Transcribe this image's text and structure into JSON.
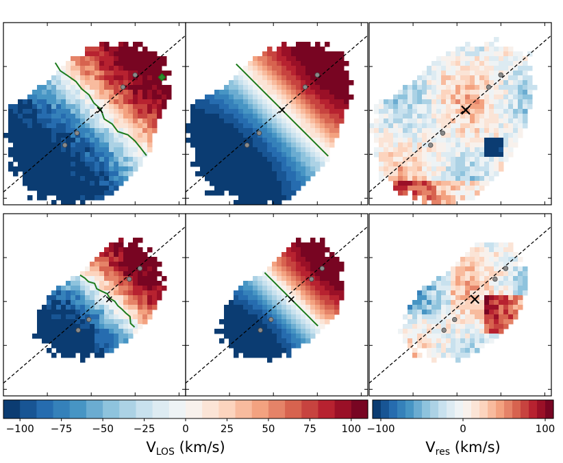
{
  "figure": {
    "description_type": "velocity_maps_grid",
    "rows": 2,
    "columns": 3
  },
  "colormap": {
    "name": "RdBu_r",
    "stops": [
      "#053061",
      "#2166ac",
      "#4393c3",
      "#92c5de",
      "#d1e5f0",
      "#f7f7f7",
      "#fddbc7",
      "#f4a582",
      "#d6604d",
      "#b2182b",
      "#67001f"
    ],
    "line_color": "#1a7a1a",
    "marker_color": "#8a8a8a",
    "center_marker_color": "#000000"
  },
  "chart_data": [
    {
      "type": "heatmap",
      "id": "observed-large",
      "row": 0,
      "col": 0,
      "quantity": "V_LOS",
      "shape": "large",
      "show_zero_velocity_contour": true,
      "show_diamond_marker": true,
      "major_axis_angle_deg": 45,
      "points_along_axis": 6
    },
    {
      "type": "heatmap",
      "id": "model-large",
      "row": 0,
      "col": 1,
      "quantity": "V_LOS",
      "shape": "large",
      "show_zero_velocity_line": true,
      "major_axis_angle_deg": 45,
      "points_along_axis": 6
    },
    {
      "type": "heatmap",
      "id": "residual-large",
      "row": 0,
      "col": 2,
      "quantity": "V_res",
      "shape": "large",
      "show_center_cross": true,
      "major_axis_angle_deg": 45,
      "points_along_axis": 6
    },
    {
      "type": "heatmap",
      "id": "observed-small",
      "row": 1,
      "col": 0,
      "quantity": "V_LOS",
      "shape": "small",
      "show_zero_velocity_contour": true,
      "major_axis_angle_deg": 45,
      "points_along_axis": 6
    },
    {
      "type": "heatmap",
      "id": "model-small",
      "row": 1,
      "col": 1,
      "quantity": "V_LOS",
      "shape": "small",
      "show_zero_velocity_line": true,
      "major_axis_angle_deg": 45,
      "points_along_axis": 6
    },
    {
      "type": "heatmap",
      "id": "residual-small",
      "row": 1,
      "col": 2,
      "quantity": "V_res",
      "shape": "small",
      "show_center_cross": true,
      "major_axis_angle_deg": 45,
      "points_along_axis": 6
    }
  ],
  "colorbars": [
    {
      "id": "los",
      "label": "V",
      "label_sub": "LOS",
      "label_unit": " (km/s)",
      "vmin": -110,
      "vmax": 110,
      "n_bins": 22,
      "ticks": [
        -100,
        -75,
        -50,
        -25,
        0,
        25,
        50,
        75,
        100
      ],
      "tick_labels": [
        "−100",
        "−75",
        "−50",
        "−25",
        "0",
        "25",
        "50",
        "75",
        "100"
      ]
    },
    {
      "id": "res",
      "label": "V",
      "label_sub": "res",
      "label_unit": " (km/s)",
      "vmin": -110,
      "vmax": 110,
      "n_bins": 22,
      "ticks": [
        -100,
        0,
        100
      ],
      "tick_labels": [
        "−100",
        "0",
        "100"
      ]
    }
  ]
}
